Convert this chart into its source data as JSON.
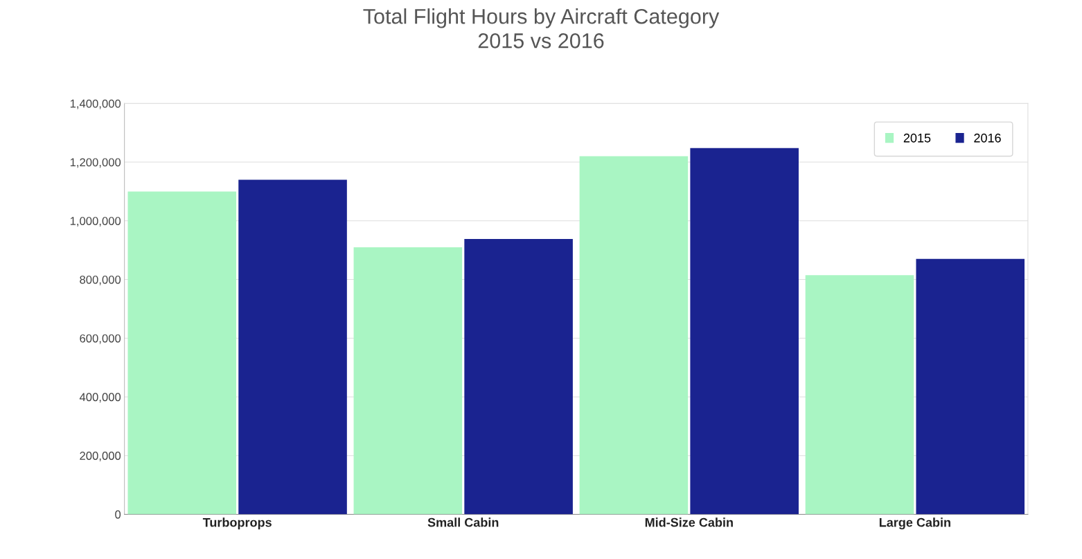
{
  "chart_data": {
    "type": "bar",
    "title": "Total Flight Hours by Aircraft Category\n2015 vs 2016",
    "categories": [
      "Turboprops",
      "Small Cabin",
      "Mid-Size Cabin",
      "Large Cabin"
    ],
    "series": [
      {
        "name": "2015",
        "color": "#a9f5c3",
        "values": [
          1100000,
          910000,
          1220000,
          815000
        ]
      },
      {
        "name": "2016",
        "color": "#1a2390",
        "values": [
          1140000,
          938000,
          1248000,
          870000
        ]
      }
    ],
    "ylim": [
      0,
      1400000
    ],
    "yticks": [
      0,
      {
        "value": 200000,
        "label": "200,000"
      },
      {
        "value": 400000,
        "label": "400,000"
      },
      {
        "value": 600000,
        "label": "600,000"
      },
      {
        "value": 800000,
        "label": "800,000"
      },
      {
        "value": 1000000,
        "label": "1,000,000"
      },
      {
        "value": 1200000,
        "label": "1,200,000"
      },
      {
        "value": 1400000,
        "label": "1,400,000"
      }
    ],
    "grid": "y",
    "legend": "top right"
  }
}
